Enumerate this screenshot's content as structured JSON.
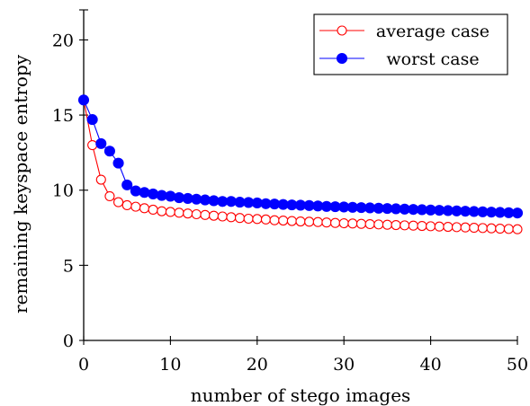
{
  "chart_data": {
    "type": "line",
    "xlabel": "number of stego images",
    "ylabel": "remaining keyspace entropy",
    "xlim": [
      0,
      50
    ],
    "ylim": [
      0,
      22
    ],
    "xticks": [
      0,
      10,
      20,
      30,
      40,
      50
    ],
    "yticks": [
      0,
      5,
      10,
      15,
      20
    ],
    "grid": false,
    "legend_position": "top-right",
    "x": [
      0,
      1,
      2,
      3,
      4,
      5,
      6,
      7,
      8,
      9,
      10,
      11,
      12,
      13,
      14,
      15,
      16,
      17,
      18,
      19,
      20,
      21,
      22,
      23,
      24,
      25,
      26,
      27,
      28,
      29,
      30,
      31,
      32,
      33,
      34,
      35,
      36,
      37,
      38,
      39,
      40,
      41,
      42,
      43,
      44,
      45,
      46,
      47,
      48,
      49,
      50
    ],
    "series": [
      {
        "name": "average case",
        "color": "#ff0000",
        "marker": "open-circle",
        "values": [
          16.0,
          13.0,
          10.7,
          9.6,
          9.2,
          9.0,
          8.9,
          8.8,
          8.7,
          8.6,
          8.55,
          8.5,
          8.45,
          8.4,
          8.35,
          8.3,
          8.25,
          8.2,
          8.15,
          8.1,
          8.08,
          8.05,
          8.0,
          7.98,
          7.95,
          7.92,
          7.9,
          7.88,
          7.85,
          7.82,
          7.8,
          7.78,
          7.76,
          7.74,
          7.72,
          7.7,
          7.68,
          7.66,
          7.64,
          7.62,
          7.6,
          7.58,
          7.56,
          7.54,
          7.52,
          7.5,
          7.48,
          7.46,
          7.44,
          7.42,
          7.4
        ]
      },
      {
        "name": "worst case",
        "color": "#0000ff",
        "marker": "filled-circle",
        "values": [
          16.0,
          14.7,
          13.1,
          12.6,
          11.8,
          10.35,
          9.95,
          9.85,
          9.75,
          9.65,
          9.6,
          9.5,
          9.45,
          9.4,
          9.35,
          9.3,
          9.25,
          9.25,
          9.2,
          9.18,
          9.15,
          9.1,
          9.08,
          9.05,
          9.02,
          9.0,
          8.98,
          8.95,
          8.92,
          8.9,
          8.88,
          8.86,
          8.84,
          8.82,
          8.8,
          8.78,
          8.76,
          8.74,
          8.72,
          8.7,
          8.68,
          8.66,
          8.64,
          8.62,
          8.6,
          8.58,
          8.56,
          8.54,
          8.52,
          8.5,
          8.48
        ]
      }
    ]
  }
}
